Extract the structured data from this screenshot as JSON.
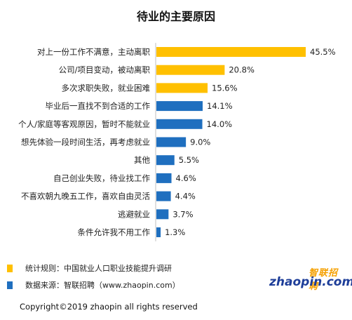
{
  "chart_data": {
    "type": "bar",
    "orientation": "horizontal",
    "title": "待业的主要原因",
    "categories": [
      "对上一份工作不满意，主动离职",
      "公司/项目变动，被动离职",
      "多次求职失败，就业困难",
      "毕业后一直找不到合适的工作",
      "个人/家庭等客观原因，暂时不能就业",
      "想先体验一段时间生活，再考虑就业",
      "其他",
      "自己创业失败，待业找工作",
      "不喜欢朝九晚五工作，喜欢自由灵活",
      "逃避就业",
      "条件允许我不用工作"
    ],
    "values": [
      45.5,
      20.8,
      15.6,
      14.1,
      14.0,
      9.0,
      5.5,
      4.6,
      4.4,
      3.7,
      1.3
    ],
    "value_labels": [
      "45.5%",
      "20.8%",
      "15.6%",
      "14.1%",
      "14.0%",
      "9.0%",
      "5.5%",
      "4.6%",
      "4.4%",
      "3.7%",
      "1.3%"
    ],
    "bar_colors": [
      "#ffc000",
      "#ffc000",
      "#ffc000",
      "#1f6fbf",
      "#1f6fbf",
      "#1f6fbf",
      "#1f6fbf",
      "#1f6fbf",
      "#1f6fbf",
      "#1f6fbf",
      "#1f6fbf"
    ],
    "xlim": [
      0,
      45.5
    ],
    "grid": false,
    "xlabel": "",
    "ylabel": ""
  },
  "legend": [
    {
      "color": "#ffc000",
      "text": "统计规则：中国就业人口职业技能提升调研"
    },
    {
      "color": "#1f6fbf",
      "text": "数据来源：智联招聘（www.zhaopin.com）"
    }
  ],
  "logo": {
    "cn": "智联招聘",
    "en": "zhaopin.com"
  },
  "copyright": "Copyright©2019 zhaopin all rights reserved"
}
